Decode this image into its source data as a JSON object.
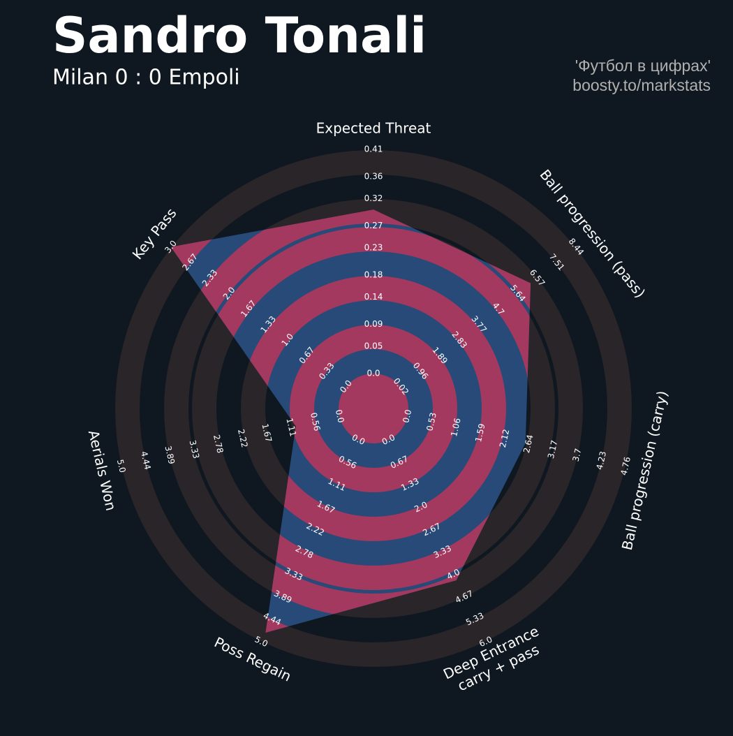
{
  "chart_data": {
    "type": "radar",
    "title": "Sandro Tonali",
    "subtitle": "Milan 0 : 0 Empoli",
    "credits": [
      "'Футбол в цифрах'",
      "boosty.to/markstats"
    ],
    "categories": [
      "Expected Threat",
      "Ball progression (pass)",
      "Ball progression (carry)",
      [
        "Deep Entrance",
        "carry + pass"
      ],
      "Poss Regain",
      "Aerials Won",
      "Key Pass"
    ],
    "series": [
      {
        "color": "#274a78",
        "values": [
          0.3,
          6.26,
          2.57,
          4.17,
          4.77,
          1.0,
          3.0
        ]
      }
    ],
    "axis_ticks": [
      [
        {
          "value": 0,
          "label": "0.0"
        },
        0.05,
        0.09,
        0.14,
        0.18,
        0.23,
        0.27,
        0.32,
        0.36,
        0.41
      ],
      [
        0.02,
        0.96,
        1.89,
        2.83,
        3.77,
        4.7,
        5.64,
        6.57,
        7.51,
        8.44
      ],
      [
        {
          "value": 0,
          "label": "0.0"
        },
        0.53,
        1.06,
        1.59,
        2.12,
        2.64,
        3.17,
        3.7,
        4.23,
        4.76
      ],
      [
        {
          "value": 0,
          "label": "0.0"
        },
        0.67,
        1.33,
        {
          "value": 2,
          "label": "2.0"
        },
        2.67,
        3.33,
        {
          "value": 4,
          "label": "4.0"
        },
        4.67,
        5.33,
        {
          "value": 6,
          "label": "6.0"
        }
      ],
      [
        {
          "value": 0,
          "label": "0.0"
        },
        0.56,
        1.11,
        1.67,
        2.22,
        2.78,
        3.33,
        3.89,
        4.44,
        {
          "value": 5,
          "label": "5.0"
        }
      ],
      [
        {
          "value": 0,
          "label": "0.0"
        },
        0.56,
        1.11,
        1.67,
        2.22,
        2.78,
        3.33,
        3.89,
        4.44,
        {
          "value": 5,
          "label": "5.0"
        }
      ],
      [
        {
          "value": 0,
          "label": "0.0"
        },
        0.33,
        0.67,
        {
          "value": 1,
          "label": "1.0"
        },
        1.33,
        1.67,
        {
          "value": 2,
          "label": "2.0"
        },
        2.33,
        2.67,
        {
          "value": 3,
          "label": "3.0"
        }
      ]
    ],
    "ring_color": "#a3395e",
    "ring_color_outside": "#2a2529"
  }
}
